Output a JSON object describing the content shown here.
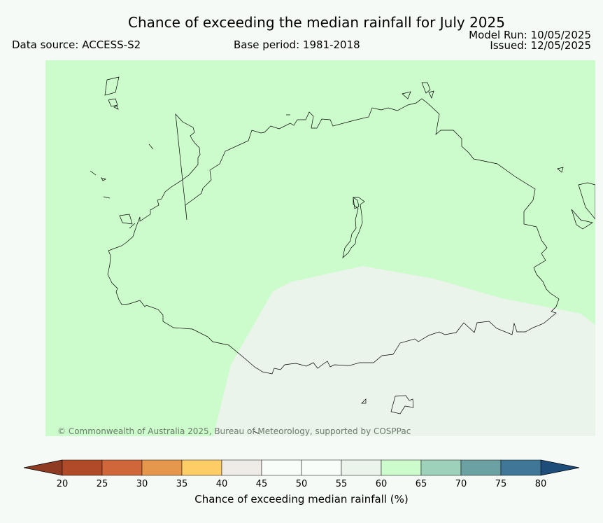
{
  "header": {
    "title": "Chance of exceeding the median rainfall for July 2025",
    "data_source": "Data source: ACCESS-S2",
    "base_period": "Base period: 1981-2018",
    "model_run": "Model Run: 10/05/2025",
    "issued": "Issued: 12/05/2025"
  },
  "map": {
    "background_category": "60-65",
    "background_color": "#ccfccc",
    "lower_region_category": "50-55",
    "lower_region_color": "#eaf4ea",
    "coastline_color": "#000000"
  },
  "copyright": "© Commonwealth of Australia 2025, Bureau of Meteorology, supported by COSPPac",
  "colorbar": {
    "label": "Chance of exceeding median rainfall (%)",
    "ticks": [
      "20",
      "25",
      "30",
      "35",
      "40",
      "45",
      "50",
      "55",
      "60",
      "65",
      "70",
      "75",
      "80"
    ],
    "colors": [
      "#b04a29",
      "#d0673a",
      "#e5974c",
      "#ffcd66",
      "#efebe7",
      "#f8fdfa",
      "#f8fdfa",
      "#eaf4ea",
      "#ccfccc",
      "#9ed1ba",
      "#6ba1a3",
      "#407696"
    ],
    "under_color": "#8f3a22",
    "over_color": "#1e4d7a"
  }
}
